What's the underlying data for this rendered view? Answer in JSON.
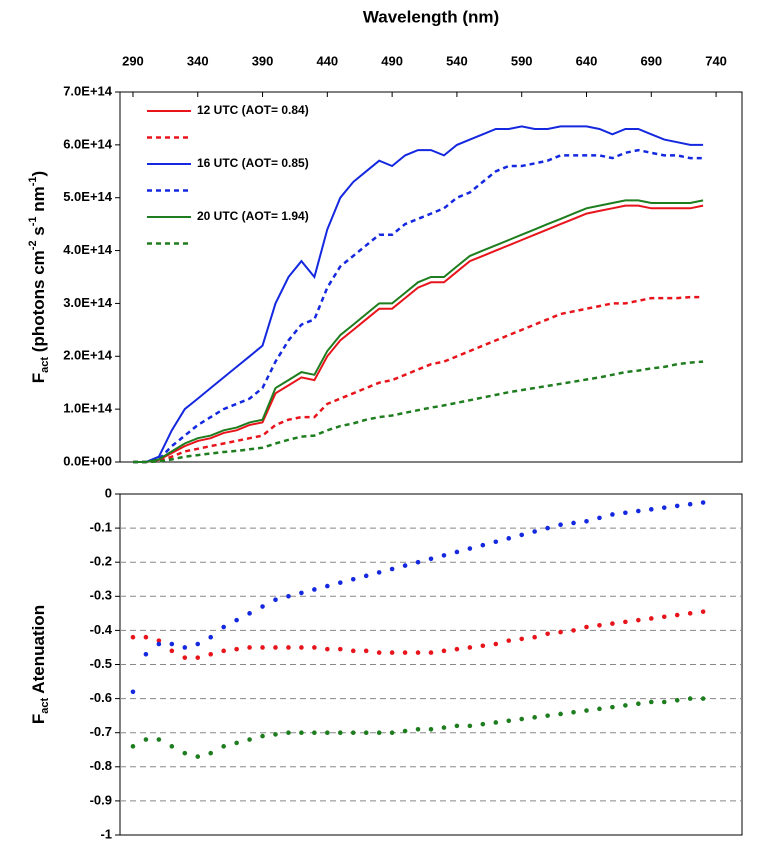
{
  "chart_data": [
    {
      "type": "line",
      "xlabel": "Wavelength (nm)",
      "ylabel_parts": [
        {
          "text": "F"
        },
        {
          "text": "act",
          "shift": "sub"
        },
        {
          "text": " (photons cm"
        },
        {
          "text": "-2",
          "shift": "super"
        },
        {
          "text": " s"
        },
        {
          "text": "-1",
          "shift": "super"
        },
        {
          "text": " nm"
        },
        {
          "text": "-1",
          "shift": "super"
        },
        {
          "text": ")"
        }
      ],
      "xlim": [
        280,
        760
      ],
      "xticks": [
        290,
        340,
        390,
        440,
        490,
        540,
        590,
        640,
        690,
        740
      ],
      "ylim": [
        0,
        700000000000000.0
      ],
      "yticks": [
        {
          "value": 0,
          "label": "0.0E+00"
        },
        {
          "value": 100000000000000.0,
          "label": "1.0E+14"
        },
        {
          "value": 200000000000000.0,
          "label": "2.0E+14"
        },
        {
          "value": 300000000000000.0,
          "label": "3.0E+14"
        },
        {
          "value": 400000000000000.0,
          "label": "4.0E+14"
        },
        {
          "value": 500000000000000.0,
          "label": "5.0E+14"
        },
        {
          "value": 600000000000000.0,
          "label": "6.0E+14"
        },
        {
          "value": 700000000000000.0,
          "label": "7.0E+14"
        }
      ],
      "legend": "upper left",
      "x": [
        290,
        300,
        310,
        320,
        330,
        340,
        350,
        360,
        370,
        380,
        390,
        400,
        410,
        420,
        430,
        440,
        450,
        460,
        470,
        480,
        490,
        500,
        510,
        520,
        530,
        540,
        550,
        560,
        570,
        580,
        590,
        600,
        610,
        620,
        630,
        640,
        650,
        660,
        670,
        680,
        690,
        700,
        710,
        720,
        730
      ],
      "series": [
        {
          "name": "12 UTC  (AOT= 0.84)",
          "color": "#e8141c",
          "dash": false,
          "values": [
            0,
            0,
            4000000000000.0,
            17000000000000.0,
            30000000000000.0,
            40000000000000.0,
            45000000000000.0,
            55000000000000.0,
            60000000000000.0,
            70000000000000.0,
            75000000000000.0,
            130000000000000.0,
            145000000000000.0,
            160000000000000.0,
            155000000000000.0,
            200000000000000.0,
            230000000000000.0,
            250000000000000.0,
            270000000000000.0,
            290000000000000.0,
            290000000000000.0,
            310000000000000.0,
            330000000000000.0,
            340000000000000.0,
            340000000000000.0,
            360000000000000.0,
            380000000000000.0,
            390000000000000.0,
            400000000000000.0,
            410000000000000.0,
            420000000000000.0,
            430000000000000.0,
            440000000000000.0,
            450000000000000.0,
            460000000000000.0,
            470000000000000.0,
            475000000000000.0,
            480000000000000.0,
            485000000000000.0,
            485000000000000.0,
            480000000000000.0,
            480000000000000.0,
            480000000000000.0,
            480000000000000.0,
            485000000000000.0
          ]
        },
        {
          "color": "#e8141c",
          "dash": true,
          "values": [
            0,
            0,
            2000000000000.0,
            10000000000000.0,
            20000000000000.0,
            25000000000000.0,
            30000000000000.0,
            35000000000000.0,
            40000000000000.0,
            45000000000000.0,
            50000000000000.0,
            70000000000000.0,
            80000000000000.0,
            85000000000000.0,
            85000000000000.0,
            110000000000000.0,
            120000000000000.0,
            130000000000000.0,
            140000000000000.0,
            150000000000000.0,
            155000000000000.0,
            165000000000000.0,
            175000000000000.0,
            185000000000000.0,
            190000000000000.0,
            200000000000000.0,
            210000000000000.0,
            220000000000000.0,
            230000000000000.0,
            240000000000000.0,
            250000000000000.0,
            260000000000000.0,
            270000000000000.0,
            280000000000000.0,
            285000000000000.0,
            290000000000000.0,
            295000000000000.0,
            300000000000000.0,
            300000000000000.0,
            305000000000000.0,
            310000000000000.0,
            310000000000000.0,
            310000000000000.0,
            312000000000000.0,
            312000000000000.0
          ]
        },
        {
          "name": "16 UTC (AOT= 0.85)",
          "color": "#1428e0",
          "dash": false,
          "values": [
            0,
            0,
            10000000000000.0,
            60000000000000.0,
            100000000000000.0,
            120000000000000.0,
            140000000000000.0,
            160000000000000.0,
            180000000000000.0,
            200000000000000.0,
            220000000000000.0,
            300000000000000.0,
            350000000000000.0,
            380000000000000.0,
            350000000000000.0,
            440000000000000.0,
            500000000000000.0,
            530000000000000.0,
            550000000000000.0,
            570000000000000.0,
            560000000000000.0,
            580000000000000.0,
            590000000000000.0,
            590000000000000.0,
            580000000000000.0,
            600000000000000.0,
            610000000000000.0,
            620000000000000.0,
            630000000000000.0,
            630000000000000.0,
            635000000000000.0,
            630000000000000.0,
            630000000000000.0,
            635000000000000.0,
            635000000000000.0,
            635000000000000.0,
            630000000000000.0,
            620000000000000.0,
            630000000000000.0,
            630000000000000.0,
            620000000000000.0,
            610000000000000.0,
            605000000000000.0,
            600000000000000.0,
            600000000000000.0
          ]
        },
        {
          "color": "#1428e0",
          "dash": true,
          "values": [
            0,
            0,
            5000000000000.0,
            30000000000000.0,
            50000000000000.0,
            70000000000000.0,
            85000000000000.0,
            100000000000000.0,
            110000000000000.0,
            120000000000000.0,
            140000000000000.0,
            190000000000000.0,
            230000000000000.0,
            260000000000000.0,
            270000000000000.0,
            330000000000000.0,
            370000000000000.0,
            390000000000000.0,
            410000000000000.0,
            430000000000000.0,
            430000000000000.0,
            450000000000000.0,
            460000000000000.0,
            470000000000000.0,
            480000000000000.0,
            500000000000000.0,
            510000000000000.0,
            530000000000000.0,
            550000000000000.0,
            560000000000000.0,
            560000000000000.0,
            565000000000000.0,
            570000000000000.0,
            580000000000000.0,
            580000000000000.0,
            580000000000000.0,
            580000000000000.0,
            575000000000000.0,
            585000000000000.0,
            590000000000000.0,
            585000000000000.0,
            580000000000000.0,
            580000000000000.0,
            575000000000000.0,
            575000000000000.0
          ]
        },
        {
          "name": "20 UTC (AOT= 1.94)",
          "color": "#1e7d1e",
          "dash": false,
          "values": [
            0,
            0,
            5000000000000.0,
            20000000000000.0,
            35000000000000.0,
            45000000000000.0,
            50000000000000.0,
            60000000000000.0,
            65000000000000.0,
            75000000000000.0,
            80000000000000.0,
            140000000000000.0,
            155000000000000.0,
            170000000000000.0,
            165000000000000.0,
            210000000000000.0,
            240000000000000.0,
            260000000000000.0,
            280000000000000.0,
            300000000000000.0,
            300000000000000.0,
            320000000000000.0,
            340000000000000.0,
            350000000000000.0,
            350000000000000.0,
            370000000000000.0,
            390000000000000.0,
            400000000000000.0,
            410000000000000.0,
            420000000000000.0,
            430000000000000.0,
            440000000000000.0,
            450000000000000.0,
            460000000000000.0,
            470000000000000.0,
            480000000000000.0,
            485000000000000.0,
            490000000000000.0,
            495000000000000.0,
            495000000000000.0,
            490000000000000.0,
            490000000000000.0,
            490000000000000.0,
            490000000000000.0,
            495000000000000.0
          ]
        },
        {
          "color": "#1e7d1e",
          "dash": true,
          "values": [
            0,
            0,
            1000000000000.0,
            5000000000000.0,
            10000000000000.0,
            13000000000000.0,
            16000000000000.0,
            19000000000000.0,
            21000000000000.0,
            24000000000000.0,
            27000000000000.0,
            35000000000000.0,
            42000000000000.0,
            48000000000000.0,
            50000000000000.0,
            60000000000000.0,
            68000000000000.0,
            73000000000000.0,
            80000000000000.0,
            85000000000000.0,
            88000000000000.0,
            93000000000000.0,
            98000000000000.0,
            103000000000000.0,
            107000000000000.0,
            112000000000000.0,
            117000000000000.0,
            122000000000000.0,
            127000000000000.0,
            132000000000000.0,
            136000000000000.0,
            140000000000000.0,
            144000000000000.0,
            148000000000000.0,
            152000000000000.0,
            156000000000000.0,
            160000000000000.0,
            165000000000000.0,
            170000000000000.0,
            173000000000000.0,
            177000000000000.0,
            180000000000000.0,
            185000000000000.0,
            188000000000000.0,
            190000000000000.0
          ]
        }
      ]
    },
    {
      "type": "scatter",
      "ylabel_parts": [
        {
          "text": "F"
        },
        {
          "text": "act",
          "shift": "sub"
        },
        {
          "text": " Atenuation"
        }
      ],
      "xlim": [
        280,
        760
      ],
      "ylim": [
        -1,
        0
      ],
      "yticks": [
        0,
        -0.1,
        -0.2,
        -0.3,
        -0.4,
        -0.5,
        -0.6,
        -0.7,
        -0.8,
        -0.9,
        -1
      ],
      "grid": true,
      "x": [
        290,
        300,
        310,
        320,
        330,
        340,
        350,
        360,
        370,
        380,
        390,
        400,
        410,
        420,
        430,
        440,
        450,
        460,
        470,
        480,
        490,
        500,
        510,
        520,
        530,
        540,
        550,
        560,
        570,
        580,
        590,
        600,
        610,
        620,
        630,
        640,
        650,
        660,
        670,
        680,
        690,
        700,
        710,
        720,
        730
      ],
      "series": [
        {
          "color": "#e8141c",
          "values": [
            -0.42,
            -0.42,
            -0.43,
            -0.46,
            -0.48,
            -0.48,
            -0.47,
            -0.46,
            -0.455,
            -0.45,
            -0.45,
            -0.45,
            -0.45,
            -0.45,
            -0.45,
            -0.455,
            -0.455,
            -0.46,
            -0.46,
            -0.465,
            -0.465,
            -0.465,
            -0.465,
            -0.465,
            -0.46,
            -0.455,
            -0.45,
            -0.445,
            -0.44,
            -0.43,
            -0.425,
            -0.42,
            -0.41,
            -0.405,
            -0.4,
            -0.39,
            -0.385,
            -0.38,
            -0.375,
            -0.37,
            -0.365,
            -0.36,
            -0.355,
            -0.35,
            -0.345
          ]
        },
        {
          "color": "#1428e0",
          "values": [
            -0.58,
            -0.47,
            -0.44,
            -0.44,
            -0.45,
            -0.44,
            -0.42,
            -0.39,
            -0.37,
            -0.35,
            -0.33,
            -0.31,
            -0.3,
            -0.29,
            -0.28,
            -0.27,
            -0.26,
            -0.25,
            -0.24,
            -0.23,
            -0.22,
            -0.21,
            -0.2,
            -0.19,
            -0.18,
            -0.17,
            -0.16,
            -0.15,
            -0.14,
            -0.13,
            -0.12,
            -0.11,
            -0.1,
            -0.09,
            -0.085,
            -0.08,
            -0.07,
            -0.06,
            -0.055,
            -0.05,
            -0.045,
            -0.04,
            -0.035,
            -0.03,
            -0.025
          ]
        },
        {
          "color": "#1e7d1e",
          "values": [
            -0.74,
            -0.72,
            -0.72,
            -0.74,
            -0.76,
            -0.77,
            -0.76,
            -0.74,
            -0.73,
            -0.72,
            -0.71,
            -0.705,
            -0.7,
            -0.7,
            -0.7,
            -0.7,
            -0.7,
            -0.7,
            -0.7,
            -0.7,
            -0.7,
            -0.695,
            -0.69,
            -0.69,
            -0.685,
            -0.68,
            -0.68,
            -0.675,
            -0.67,
            -0.665,
            -0.66,
            -0.655,
            -0.65,
            -0.645,
            -0.64,
            -0.635,
            -0.63,
            -0.625,
            -0.62,
            -0.615,
            -0.61,
            -0.61,
            -0.605,
            -0.6,
            -0.6
          ]
        }
      ]
    }
  ]
}
